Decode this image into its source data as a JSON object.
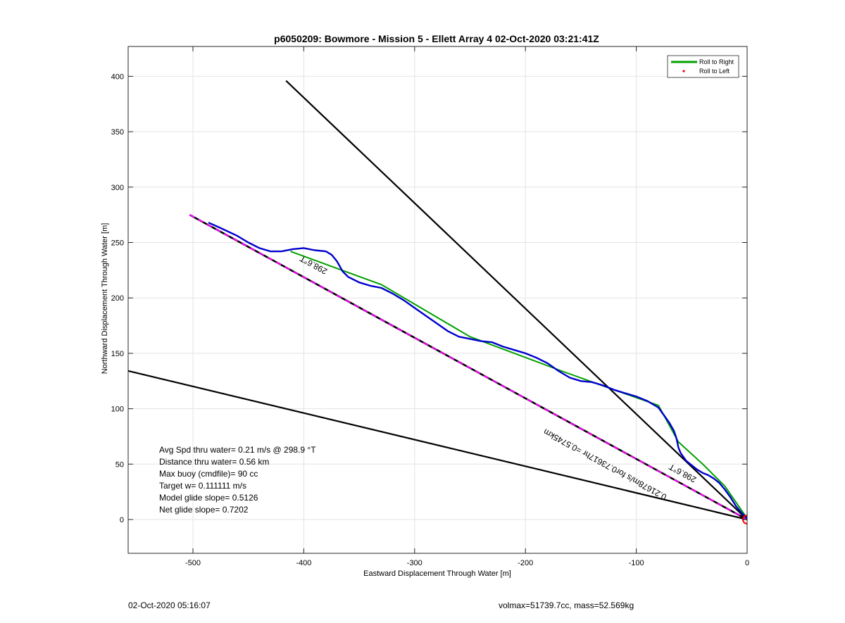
{
  "chart_data": {
    "type": "line",
    "title": "p6050209: Bowmore - Mission 5 - Ellett Array 4 02-Oct-2020 03:21:41Z",
    "xlabel": "Eastward Displacement Through Water [m]",
    "ylabel": "Northward Displacement Through Water [m]",
    "xlim": [
      -562,
      2
    ],
    "ylim": [
      -30,
      428
    ],
    "xticks": [
      -500,
      -400,
      -300,
      -200,
      -100,
      0
    ],
    "yticks": [
      0,
      50,
      100,
      150,
      200,
      250,
      300,
      350,
      400
    ],
    "grid": true,
    "legend": {
      "placement": "top-right",
      "entries": [
        {
          "label": "Roll to Right",
          "color": "#00a000",
          "style": "line"
        },
        {
          "label": "Roll to Left",
          "color": "#ff0000",
          "style": "dot"
        }
      ]
    },
    "series": [
      {
        "role": "track",
        "color": "#0000cc",
        "x": [
          -486,
          -475,
          -460,
          -450,
          -440,
          -430,
          -420,
          -410,
          -400,
          -390,
          -380,
          -375,
          -370,
          -365,
          -360,
          -350,
          -340,
          -330,
          -320,
          -310,
          -300,
          -290,
          -280,
          -270,
          -260,
          -250,
          -240,
          -230,
          -220,
          -210,
          -200,
          -190,
          -180,
          -170,
          -160,
          -150,
          -140,
          -130,
          -120,
          -110,
          -100,
          -90,
          -80,
          -75,
          -70,
          -66,
          -64,
          -63,
          -62,
          -60,
          -55,
          -50,
          -45,
          -40,
          -35,
          -30,
          -25,
          -20,
          -15,
          -10,
          -5,
          0
        ],
        "y": [
          268,
          263,
          256,
          250,
          245,
          242,
          242,
          244,
          245,
          243,
          242,
          239,
          233,
          224,
          219,
          214,
          211,
          209,
          204,
          198,
          191,
          184,
          177,
          170,
          165,
          163,
          161,
          160,
          156,
          153,
          150,
          146,
          141,
          134,
          128,
          125,
          124,
          121,
          117,
          114,
          111,
          107,
          101,
          94,
          87,
          80,
          74,
          70,
          65,
          60,
          53,
          49,
          45,
          42,
          40,
          37,
          33,
          27,
          20,
          12,
          6,
          1
        ]
      },
      {
        "role": "roll-right",
        "color": "#00a000",
        "x": [
          -412,
          -330,
          -250,
          -170,
          -120,
          -80,
          -62,
          -40,
          -20,
          0
        ],
        "y": [
          242,
          212,
          165,
          135,
          117,
          103,
          70,
          50,
          30,
          1
        ]
      },
      {
        "role": "heading-line",
        "color": "#000000",
        "dash": "#ff00ff",
        "x": [
          -503,
          0
        ],
        "y": [
          275,
          0
        ]
      },
      {
        "role": "bearing-line-upper",
        "color": "#000000",
        "x": [
          -416,
          0
        ],
        "y": [
          396,
          0
        ]
      },
      {
        "role": "bearing-line-lower",
        "color": "#000000",
        "x": [
          -562,
          0
        ],
        "y": [
          135,
          0
        ]
      }
    ],
    "markers": [
      {
        "role": "origin-circle",
        "x": 0,
        "y": 0,
        "color": "#ff0000"
      }
    ],
    "plot_labels": [
      {
        "id": "heading_top",
        "text": "298.6°T",
        "x": -390,
        "y": 232,
        "angle": 28.7
      },
      {
        "id": "heading_bottom",
        "text": "298.6°T",
        "x": -57,
        "y": 44,
        "angle": 28.7
      },
      {
        "id": "speed_note",
        "text": "0.21678m/s for0.73617hr =0.5745km",
        "x": -127,
        "y": 52,
        "angle": 28.7
      }
    ]
  },
  "annotations": [
    "Avg Spd thru water=  0.21 m/s @ 298.9 °T",
    "Distance thru water=  0.56 km",
    "Max buoy (cmdfile)= 90 cc",
    "Target w= 0.111111 m/s",
    "Model glide slope= 0.5126",
    "Net glide slope= 0.7202"
  ],
  "footer": {
    "timestamp": "02-Oct-2020 05:16:07",
    "summary": "volmax=51739.7cc, mass=52.569kg"
  }
}
